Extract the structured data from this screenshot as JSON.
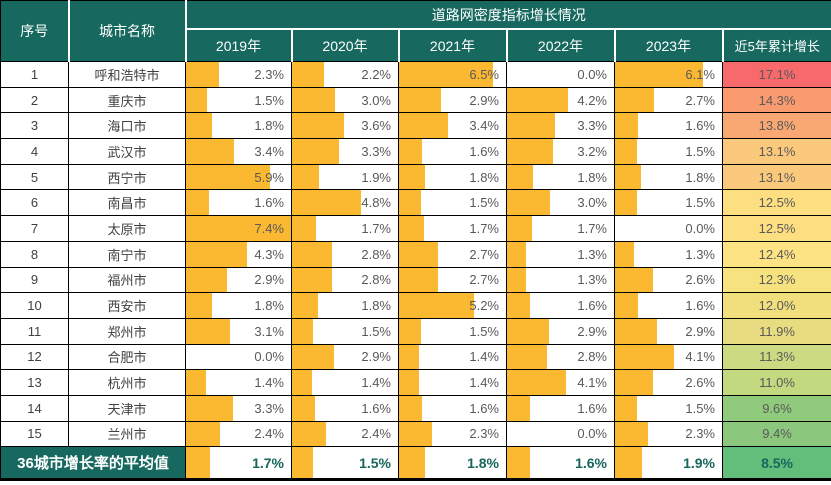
{
  "chart_data": {
    "type": "table",
    "title": "道路网密度指标增长情况",
    "col_index_header": "序号",
    "col_city_header": "城市名称",
    "year_headers": [
      "2019年",
      "2020年",
      "2021年",
      "2022年",
      "2023年"
    ],
    "cumulative_header": "近5年累计增长",
    "bar_axis_max": 7.4,
    "colors": {
      "header_bg": "#17695F",
      "data_bar": "#FBB831",
      "avg_value_text": "#17665C"
    },
    "rows": [
      {
        "index": "1",
        "city": "呼和浩特市",
        "values": [
          2.3,
          2.2,
          6.5,
          0.0,
          6.1
        ],
        "cumulative": "17.1%",
        "cum_color": "#F8696B"
      },
      {
        "index": "2",
        "city": "重庆市",
        "values": [
          1.5,
          3.0,
          2.9,
          4.2,
          2.7
        ],
        "cumulative": "14.3%",
        "cum_color": "#F99B6F"
      },
      {
        "index": "3",
        "city": "海口市",
        "values": [
          1.8,
          3.6,
          3.4,
          3.3,
          1.6
        ],
        "cumulative": "13.8%",
        "cum_color": "#FAA873"
      },
      {
        "index": "4",
        "city": "武汉市",
        "values": [
          3.4,
          3.3,
          1.6,
          3.2,
          1.5
        ],
        "cumulative": "13.1%",
        "cum_color": "#FBC97B"
      },
      {
        "index": "5",
        "city": "西宁市",
        "values": [
          5.9,
          1.9,
          1.8,
          1.8,
          1.8
        ],
        "cumulative": "13.1%",
        "cum_color": "#FBC97B"
      },
      {
        "index": "6",
        "city": "南昌市",
        "values": [
          1.6,
          4.8,
          1.5,
          3.0,
          1.5
        ],
        "cumulative": "12.5%",
        "cum_color": "#FDDF81"
      },
      {
        "index": "7",
        "city": "太原市",
        "values": [
          7.4,
          1.7,
          1.7,
          1.7,
          0.0
        ],
        "cumulative": "12.5%",
        "cum_color": "#FDDF81"
      },
      {
        "index": "8",
        "city": "南宁市",
        "values": [
          4.3,
          2.8,
          2.7,
          1.3,
          1.3
        ],
        "cumulative": "12.4%",
        "cum_color": "#FDE383"
      },
      {
        "index": "9",
        "city": "福州市",
        "values": [
          2.9,
          2.8,
          2.7,
          1.3,
          2.6
        ],
        "cumulative": "12.3%",
        "cum_color": "#F6E27F"
      },
      {
        "index": "10",
        "city": "西安市",
        "values": [
          1.8,
          1.8,
          5.2,
          1.6,
          1.6
        ],
        "cumulative": "12.0%",
        "cum_color": "#F1DF7E"
      },
      {
        "index": "11",
        "city": "郑州市",
        "values": [
          3.1,
          1.5,
          1.5,
          2.9,
          2.9
        ],
        "cumulative": "11.9%",
        "cum_color": "#E8DC80"
      },
      {
        "index": "12",
        "city": "合肥市",
        "values": [
          0.0,
          2.9,
          1.4,
          2.8,
          4.1
        ],
        "cumulative": "11.3%",
        "cum_color": "#CCDB81"
      },
      {
        "index": "13",
        "city": "杭州市",
        "values": [
          1.4,
          1.4,
          1.4,
          4.1,
          2.6
        ],
        "cumulative": "11.0%",
        "cum_color": "#C2D980"
      },
      {
        "index": "14",
        "city": "天津市",
        "values": [
          3.3,
          1.6,
          1.6,
          1.6,
          1.5
        ],
        "cumulative": "9.6%",
        "cum_color": "#90CA7D"
      },
      {
        "index": "15",
        "city": "兰州市",
        "values": [
          2.4,
          2.4,
          2.3,
          0.0,
          2.3
        ],
        "cumulative": "9.4%",
        "cum_color": "#8BC87D"
      }
    ],
    "average_row": {
      "label": "36城市增长率的平均值",
      "values": [
        1.7,
        1.5,
        1.8,
        1.6,
        1.9
      ],
      "cumulative": "8.5%",
      "cum_color": "#63BE7B"
    }
  }
}
